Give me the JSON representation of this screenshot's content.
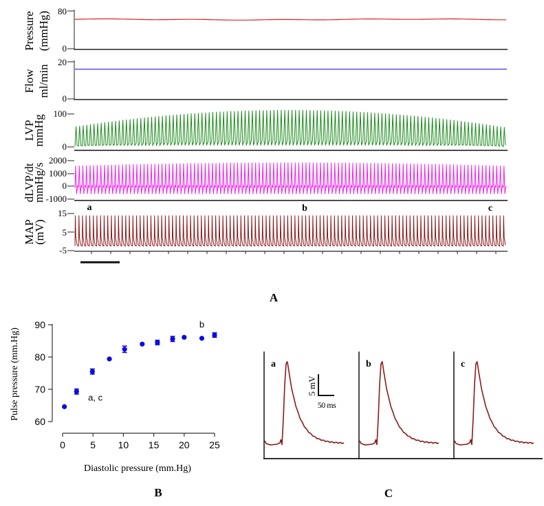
{
  "figure": {
    "panel_labels": {
      "A": "A",
      "B": "B",
      "C": "C"
    }
  },
  "chart_data": [
    {
      "type": "line",
      "panel": "A",
      "traces": [
        {
          "name": "pressure",
          "ylabel_line1": "Pressure",
          "ylabel_line2": "(mmHg)",
          "yticks": [
            "80",
            "0"
          ],
          "ylim": [
            0,
            80
          ],
          "color": "#e02020",
          "baseline": 62,
          "pulsatile": false
        },
        {
          "name": "flow",
          "ylabel_line1": "Flow",
          "ylabel_line2": "ml/min",
          "yticks": [
            "20",
            "0"
          ],
          "ylim": [
            0,
            20
          ],
          "color": "#1a1ae0",
          "baseline": 16,
          "pulsatile": false
        },
        {
          "name": "lvp",
          "ylabel_line1": "LVP",
          "ylabel_line2": "mmHg",
          "yticks": [
            "100",
            "0"
          ],
          "ylim": [
            0,
            100
          ],
          "color": "#1a8a1a",
          "min_value": 2,
          "peak_start": 62,
          "peak_mid": 112,
          "peak_end": 60,
          "pulsatile": true
        },
        {
          "name": "dlvp-dt",
          "ylabel_line1": "dLVP/dt",
          "ylabel_line2": "mmHg/s",
          "yticks": [
            "2000",
            "1000",
            "0",
            "-1000"
          ],
          "ylim": [
            -1000,
            2000
          ],
          "color": "#ee22ee",
          "min_value": -600,
          "peak_start": 1600,
          "peak_mid": 1850,
          "peak_end": 1600,
          "pulsatile": true
        },
        {
          "name": "map",
          "ylabel_line1": "MAP",
          "ylabel_line2": "(mV)",
          "yticks": [
            "15",
            "5",
            "-5"
          ],
          "ylim": [
            -5,
            15
          ],
          "color": "#8b1a1a",
          "min_value": -2.5,
          "peak": 14,
          "pulsatile": true
        }
      ],
      "time_markers": [
        "a",
        "b",
        "c"
      ],
      "beat_count": 120
    },
    {
      "type": "scatter",
      "panel": "B",
      "title": "",
      "xlabel": "Diastolic pressure (mm.Hg)",
      "ylabel": "Pulse pressure (mm.Hg)",
      "xlim": [
        0,
        25
      ],
      "ylim": [
        60,
        90
      ],
      "xticks": [
        "0",
        "5",
        "10",
        "15",
        "20",
        "25"
      ],
      "yticks": [
        "60",
        "70",
        "80",
        "90"
      ],
      "grid": false,
      "color": "#0a0ae6",
      "points": [
        {
          "x": 0.3,
          "y": 64.6,
          "err": 0.2
        },
        {
          "x": 2.3,
          "y": 69.3,
          "err": 0.8
        },
        {
          "x": 4.9,
          "y": 75.5,
          "err": 0.8
        },
        {
          "x": 7.7,
          "y": 79.4,
          "err": 0.3
        },
        {
          "x": 10.2,
          "y": 82.4,
          "err": 1.0
        },
        {
          "x": 13.1,
          "y": 84.0,
          "err": 0.3
        },
        {
          "x": 15.6,
          "y": 84.5,
          "err": 0.7
        },
        {
          "x": 18.1,
          "y": 85.6,
          "err": 0.8
        },
        {
          "x": 20.0,
          "y": 86.1,
          "err": 0.3
        },
        {
          "x": 22.9,
          "y": 85.8,
          "err": 0.3
        },
        {
          "x": 25.0,
          "y": 86.8,
          "err": 0.7
        }
      ],
      "annotations": [
        {
          "text": "a, c",
          "x": 4.2,
          "y": 66.5
        },
        {
          "text": "b",
          "x": 22.5,
          "y": 89.2
        }
      ]
    },
    {
      "type": "line",
      "panel": "C",
      "traces": [
        {
          "label": "a",
          "color": "#8b1a1a"
        },
        {
          "label": "b",
          "color": "#8b1a1a"
        },
        {
          "label": "c",
          "color": "#8b1a1a"
        }
      ],
      "scalebar": {
        "vertical_label": "5 mV",
        "horizontal_label": "50 ms"
      }
    }
  ]
}
